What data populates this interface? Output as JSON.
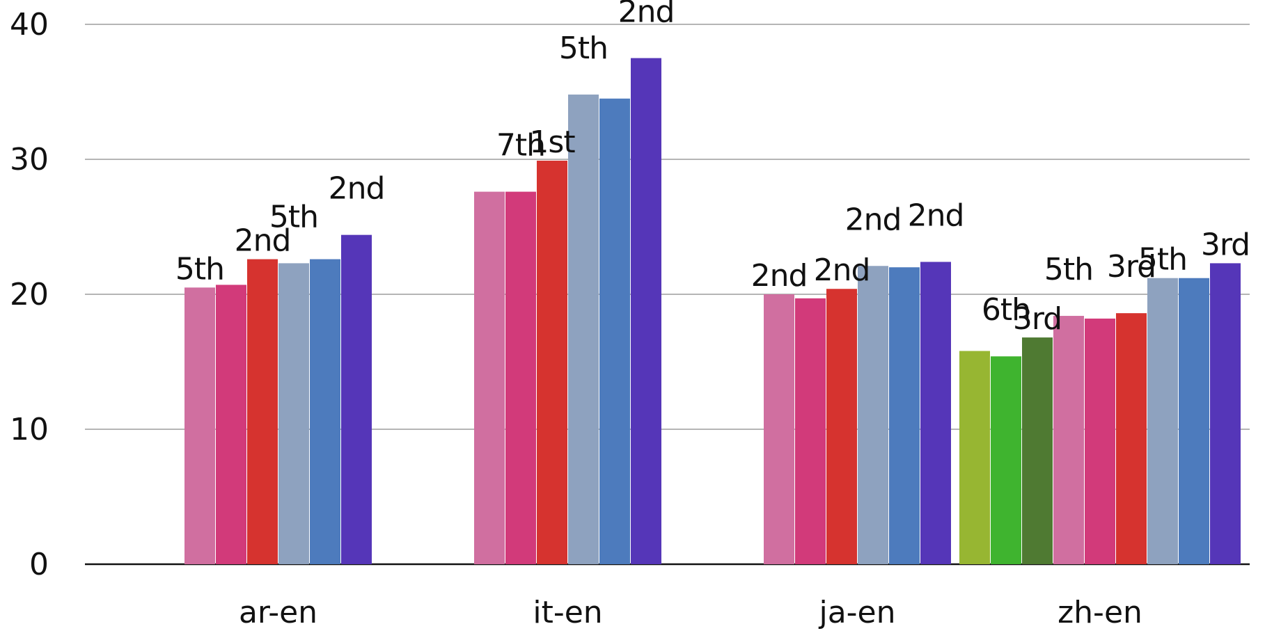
{
  "chart_data": {
    "type": "bar",
    "title": "",
    "xlabel": "",
    "ylabel": "",
    "ylim": [
      0,
      40
    ],
    "yticks": [
      0,
      10,
      20,
      30,
      40
    ],
    "grid": true,
    "groups": [
      {
        "category": "ar-en",
        "bars": [
          {
            "value": 20.5,
            "label": "5th",
            "color": "#d06fa0"
          },
          {
            "value": 20.7,
            "label": "",
            "color": "#d23a7a"
          },
          {
            "value": 22.6,
            "label": "2nd",
            "color": "#d6332f"
          },
          {
            "value": 22.3,
            "label": "5th",
            "color": "#8ea2bf"
          },
          {
            "value": 22.6,
            "label": "",
            "color": "#4d7bbd"
          },
          {
            "value": 24.4,
            "label": "2nd",
            "color": "#5536b8"
          }
        ]
      },
      {
        "category": "it-en",
        "bars": [
          {
            "value": 27.6,
            "label": "",
            "color": "#d06fa0"
          },
          {
            "value": 27.6,
            "label": "7th",
            "color": "#d23a7a"
          },
          {
            "value": 29.9,
            "label": "1st",
            "color": "#d6332f"
          },
          {
            "value": 34.8,
            "label": "5th",
            "color": "#8ea2bf"
          },
          {
            "value": 34.5,
            "label": "",
            "color": "#4d7bbd"
          },
          {
            "value": 37.5,
            "label": "2nd",
            "color": "#5536b8"
          }
        ]
      },
      {
        "category": "ja-en",
        "bars": [
          {
            "value": 20.0,
            "label": "2nd",
            "color": "#d06fa0"
          },
          {
            "value": 19.7,
            "label": "",
            "color": "#d23a7a"
          },
          {
            "value": 20.4,
            "label": "2nd",
            "color": "#d6332f"
          },
          {
            "value": 22.1,
            "label": "2nd",
            "color": "#8ea2bf"
          },
          {
            "value": 22.0,
            "label": "",
            "color": "#4d7bbd"
          },
          {
            "value": 22.4,
            "label": "2nd",
            "color": "#5536b8"
          }
        ]
      },
      {
        "category": "zh-en",
        "bars": [
          {
            "value": 15.8,
            "label": "",
            "color": "#97b632"
          },
          {
            "value": 15.4,
            "label": "6th",
            "color": "#3fb42f"
          },
          {
            "value": 16.8,
            "label": "3rd",
            "color": "#4f7a32"
          },
          {
            "value": 18.4,
            "label": "5th",
            "color": "#d06fa0"
          },
          {
            "value": 18.2,
            "label": "",
            "color": "#d23a7a"
          },
          {
            "value": 18.6,
            "label": "3rd",
            "color": "#d6332f"
          },
          {
            "value": 21.2,
            "label": "5th",
            "color": "#8ea2bf"
          },
          {
            "value": 21.2,
            "label": "",
            "color": "#4d7bbd"
          },
          {
            "value": 22.3,
            "label": "3rd",
            "color": "#5536b8"
          }
        ]
      }
    ]
  }
}
